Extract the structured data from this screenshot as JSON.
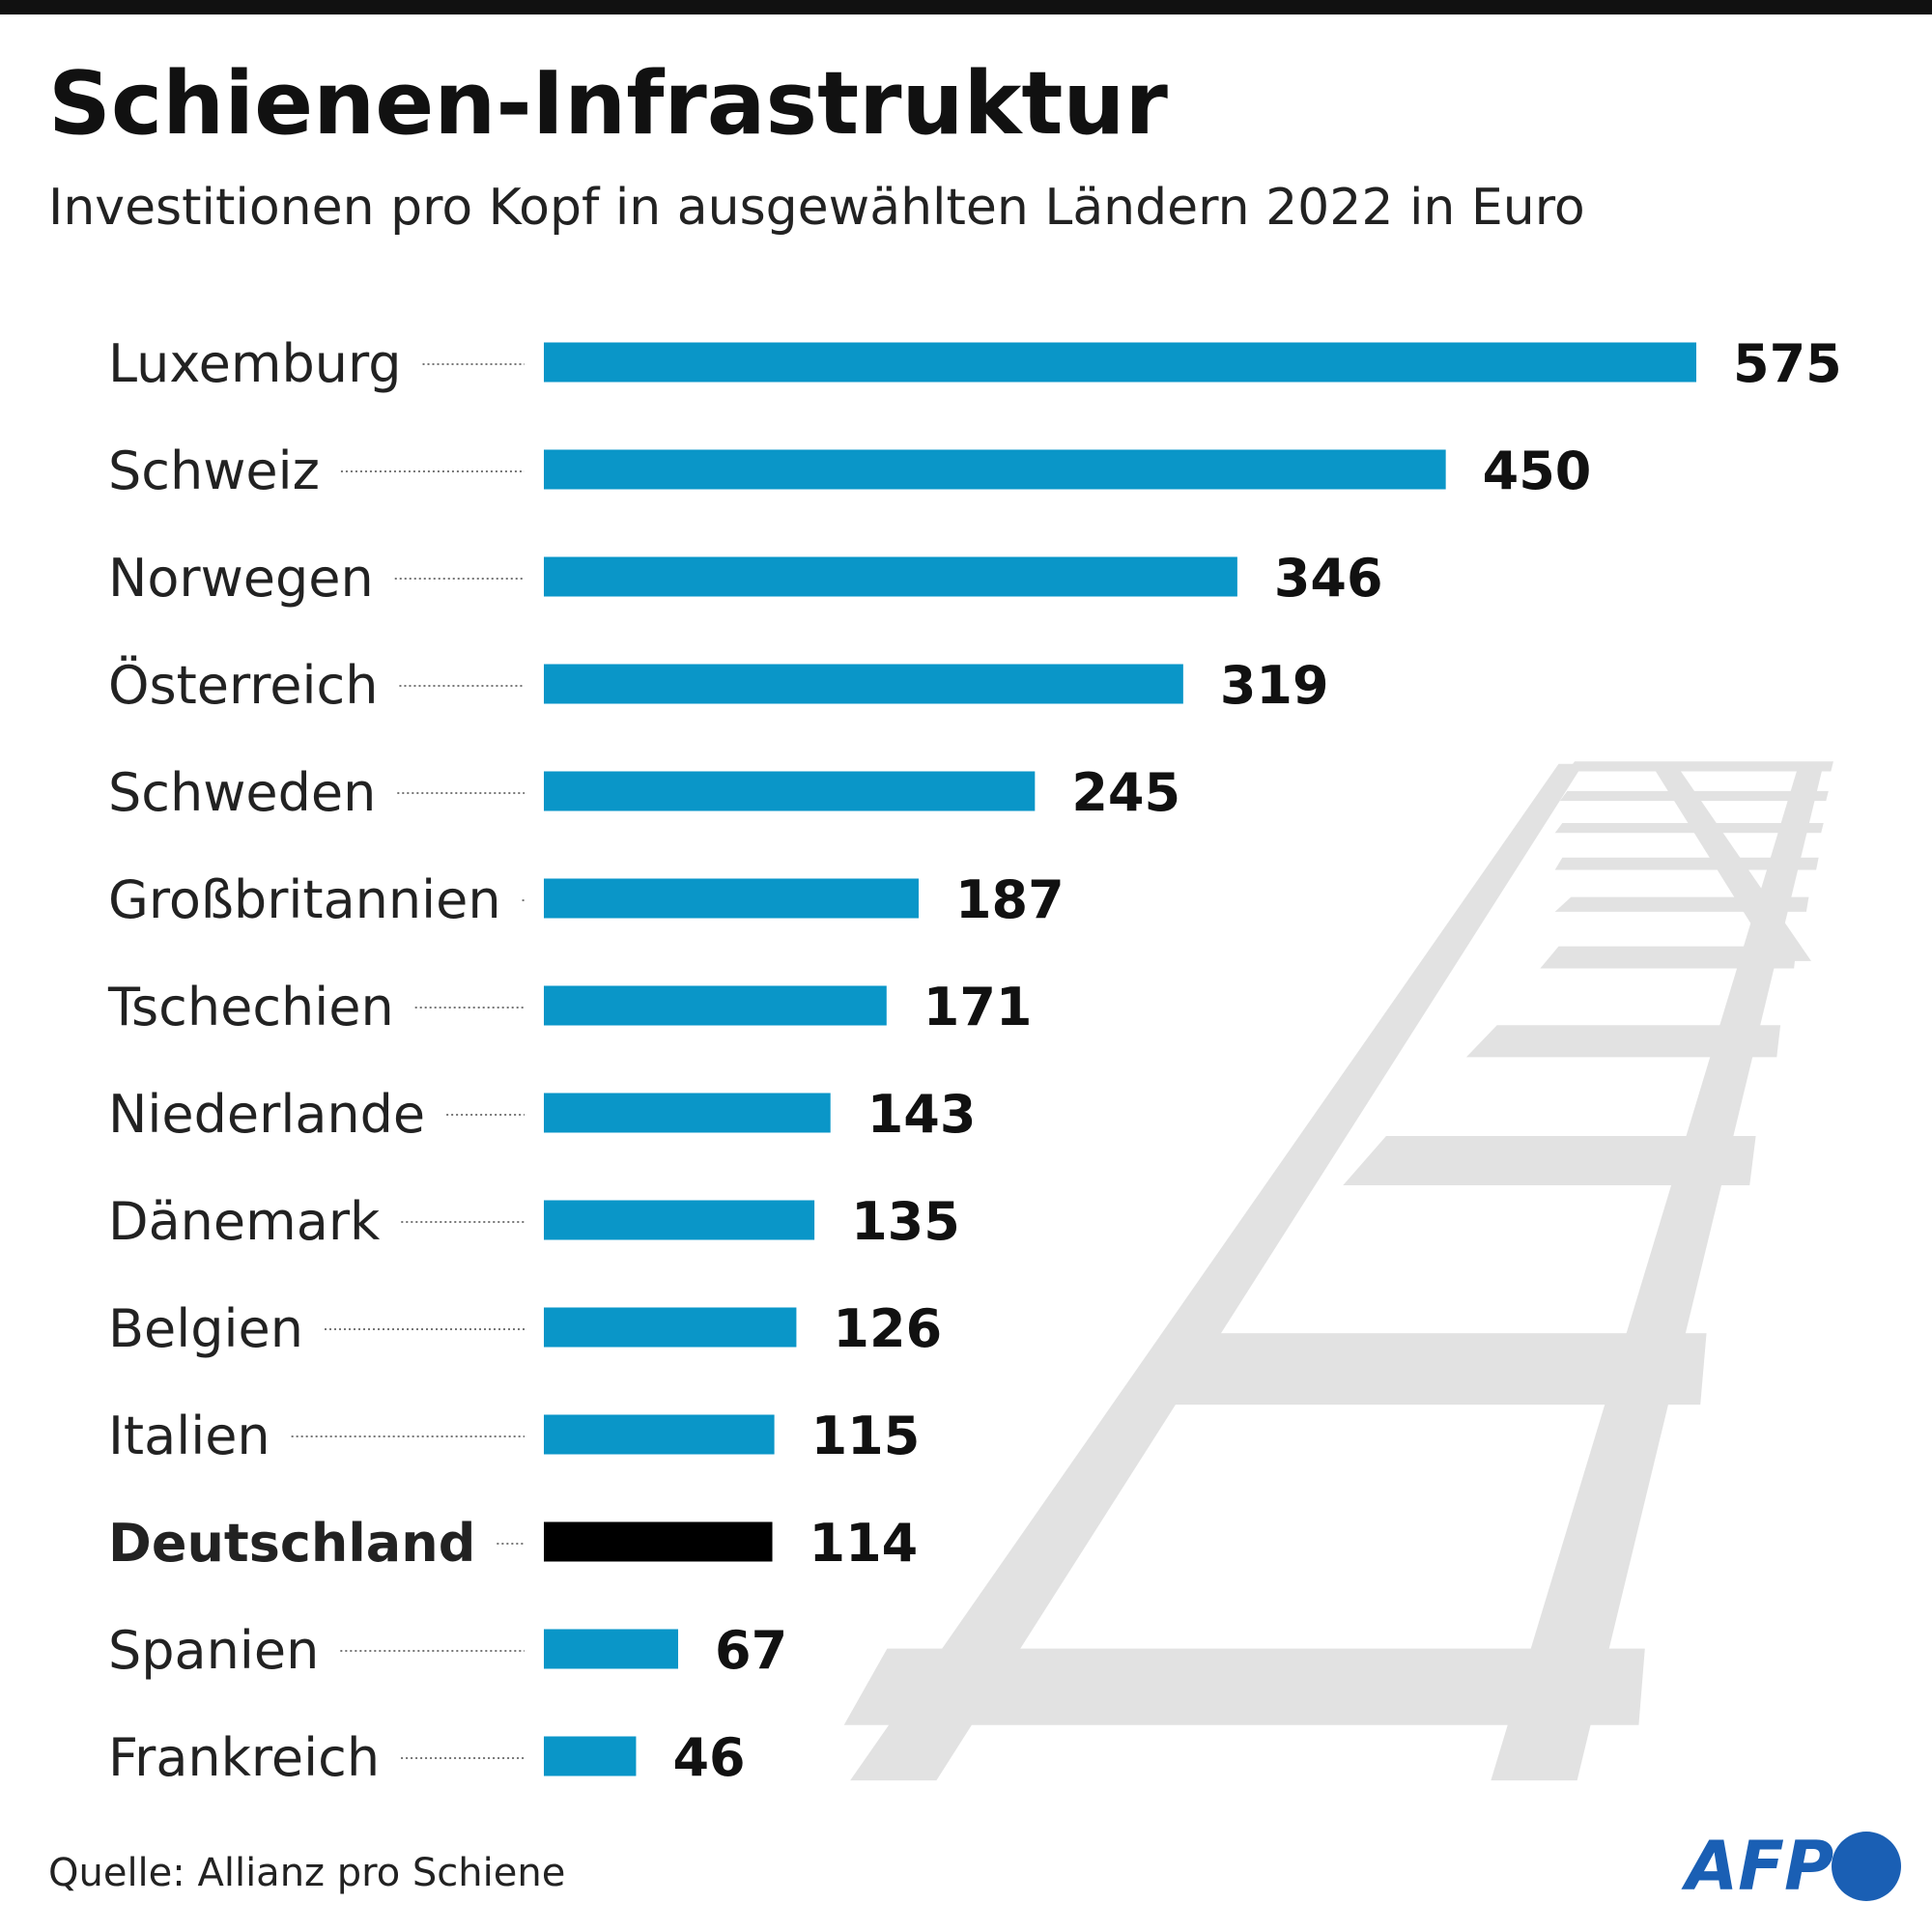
{
  "chart_data": {
    "type": "hbar",
    "title": "Schienen-Infrastruktur",
    "subtitle": "Investitionen pro Kopf in ausgewählten Ländern 2022 in Euro",
    "categories": [
      "Luxemburg",
      "Schweiz",
      "Norwegen",
      "Österreich",
      "Schweden",
      "Großbritannien",
      "Tschechien",
      "Niederlande",
      "Dänemark",
      "Belgien",
      "Italien",
      "Deutschland",
      "Spanien",
      "Frankreich"
    ],
    "values": [
      575,
      450,
      346,
      319,
      245,
      187,
      171,
      143,
      135,
      126,
      115,
      114,
      67,
      46
    ],
    "color": "#0a96c8",
    "colors": [
      "#0a96c8",
      "#0a96c8",
      "#0a96c8",
      "#0a96c8",
      "#0a96c8",
      "#0a96c8",
      "#0a96c8",
      "#0a96c8",
      "#0a96c8",
      "#0a96c8",
      "#0a96c8",
      "#000000",
      "#0a96c8",
      "#0a96c8"
    ],
    "source": "Quelle: Allianz pro Schiene",
    "logo": "AFP"
  }
}
